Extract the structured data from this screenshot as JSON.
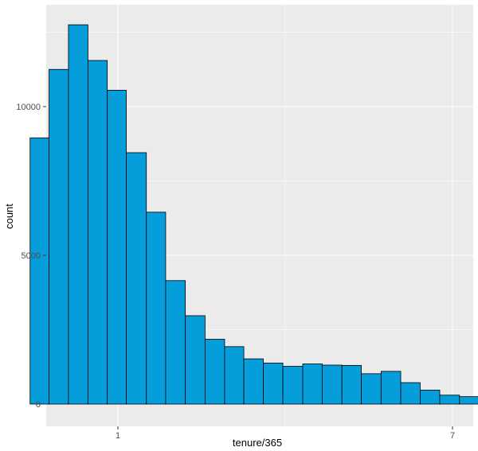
{
  "chart_data": {
    "type": "histogram",
    "xlabel": "tenure/365",
    "ylabel": "count",
    "x_scale": "log",
    "x_ticks": [
      1,
      7
    ],
    "y_ticks": [
      0,
      5000,
      10000
    ],
    "y_tick_labels": [
      "0",
      "5000",
      "10000"
    ],
    "x_tick_labels": [
      "1",
      "7"
    ],
    "grid": true,
    "bins": [
      {
        "left": 0.6,
        "right": 0.67,
        "count": 8950
      },
      {
        "left": 0.67,
        "right": 0.75,
        "count": 11250
      },
      {
        "left": 0.75,
        "right": 0.84,
        "count": 12750
      },
      {
        "left": 0.84,
        "right": 0.94,
        "count": 11550
      },
      {
        "left": 0.94,
        "right": 1.05,
        "count": 10550
      },
      {
        "left": 1.05,
        "right": 1.18,
        "count": 8450
      },
      {
        "left": 1.18,
        "right": 1.32,
        "count": 6450
      },
      {
        "left": 1.32,
        "right": 1.48,
        "count": 4150
      },
      {
        "left": 1.48,
        "right": 1.66,
        "count": 2970
      },
      {
        "left": 1.66,
        "right": 1.86,
        "count": 2180
      },
      {
        "left": 1.86,
        "right": 2.08,
        "count": 1930
      },
      {
        "left": 2.08,
        "right": 2.33,
        "count": 1520
      },
      {
        "left": 2.33,
        "right": 2.61,
        "count": 1380
      },
      {
        "left": 2.61,
        "right": 2.93,
        "count": 1270
      },
      {
        "left": 2.93,
        "right": 3.28,
        "count": 1350
      },
      {
        "left": 3.28,
        "right": 3.68,
        "count": 1310
      },
      {
        "left": 3.68,
        "right": 4.12,
        "count": 1300
      },
      {
        "left": 4.12,
        "right": 4.62,
        "count": 1020
      },
      {
        "left": 4.62,
        "right": 5.18,
        "count": 1100
      },
      {
        "left": 5.18,
        "right": 5.8,
        "count": 720
      },
      {
        "left": 5.8,
        "right": 6.5,
        "count": 470
      },
      {
        "left": 6.5,
        "right": 7.29,
        "count": 300
      },
      {
        "left": 7.29,
        "right": 8.17,
        "count": 250
      },
      {
        "left": 8.17,
        "right": 9.15,
        "count": 290
      },
      {
        "left": 9.15,
        "right": 10.26,
        "count": 240
      },
      {
        "left": 10.26,
        "right": 11.5,
        "count": 110
      },
      {
        "left": 11.5,
        "right": 12.89,
        "count": 40
      }
    ],
    "colors": {
      "bar_fill": "#069ddb",
      "bar_stroke": "#000000",
      "panel_bg": "#ebebeb",
      "grid_major": "#ffffff",
      "tick_label": "#4d4d4d"
    }
  }
}
